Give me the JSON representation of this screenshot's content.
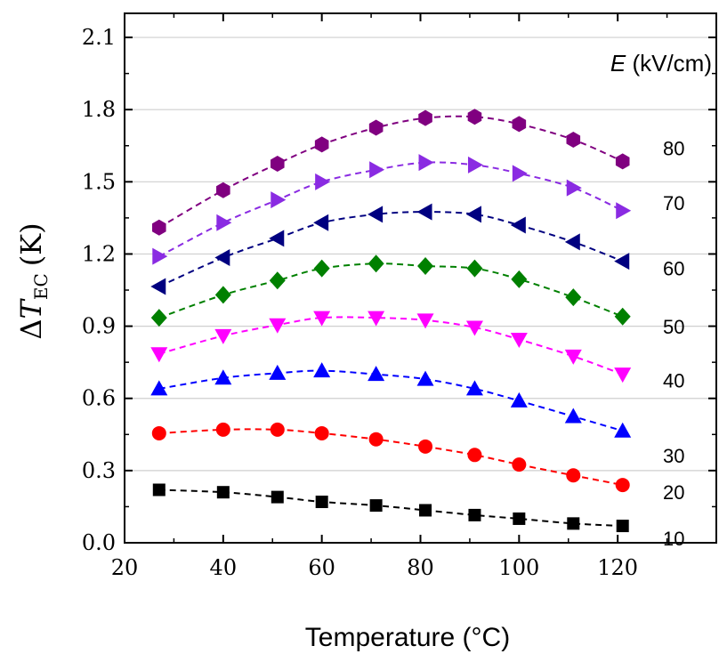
{
  "chart_data": {
    "type": "line",
    "xlabel": "Temperature (°C)",
    "ylabel": {
      "delta": "Δ",
      "symbol": "T",
      "subscript": "EC",
      "unit": "(K)"
    },
    "xlim": [
      20,
      140
    ],
    "ylim": [
      0,
      2.2
    ],
    "xticks": [
      20,
      40,
      60,
      80,
      100,
      120
    ],
    "yticks": [
      0.0,
      0.3,
      0.6,
      0.9,
      1.2,
      1.5,
      1.8,
      2.1
    ],
    "ytick_labels": [
      "0.0",
      "0.3",
      "0.6",
      "0.9",
      "1.2",
      "1.5",
      "1.8",
      "2.1"
    ],
    "legend_title": {
      "italic": "E",
      "rest": " (kV/cm)"
    },
    "grid": "horizontal",
    "x": [
      27,
      40,
      51,
      60,
      71,
      81,
      91,
      100,
      111,
      121
    ],
    "series": [
      {
        "name": "10",
        "color": "#000000",
        "marker": "square",
        "values": [
          0.22,
          0.21,
          0.19,
          0.17,
          0.155,
          0.135,
          0.115,
          0.1,
          0.08,
          0.07
        ]
      },
      {
        "name": "20",
        "color": "#ff0000",
        "marker": "circle",
        "values": [
          0.455,
          0.47,
          0.47,
          0.455,
          0.43,
          0.4,
          0.365,
          0.325,
          0.28,
          0.24
        ]
      },
      {
        "name": "30",
        "color": "#0000ff",
        "marker": "triangle-up",
        "values": [
          0.64,
          0.685,
          0.705,
          0.715,
          0.7,
          0.68,
          0.64,
          0.59,
          0.525,
          0.465
        ]
      },
      {
        "name": "40",
        "color": "#ff00ff",
        "marker": "triangle-down",
        "values": [
          0.785,
          0.86,
          0.905,
          0.935,
          0.935,
          0.925,
          0.895,
          0.845,
          0.775,
          0.7
        ]
      },
      {
        "name": "50",
        "color": "#008000",
        "marker": "diamond",
        "values": [
          0.935,
          1.03,
          1.09,
          1.14,
          1.16,
          1.15,
          1.14,
          1.095,
          1.02,
          0.94
        ]
      },
      {
        "name": "60",
        "color": "#000080",
        "marker": "triangle-left",
        "values": [
          1.065,
          1.185,
          1.265,
          1.33,
          1.365,
          1.375,
          1.365,
          1.32,
          1.25,
          1.17
        ]
      },
      {
        "name": "70",
        "color": "#8a2be2",
        "marker": "triangle-right",
        "values": [
          1.19,
          1.33,
          1.425,
          1.5,
          1.55,
          1.58,
          1.57,
          1.535,
          1.475,
          1.38
        ]
      },
      {
        "name": "80",
        "color": "#800080",
        "marker": "hexagon",
        "values": [
          1.31,
          1.465,
          1.575,
          1.655,
          1.725,
          1.765,
          1.77,
          1.74,
          1.675,
          1.585
        ]
      }
    ]
  }
}
